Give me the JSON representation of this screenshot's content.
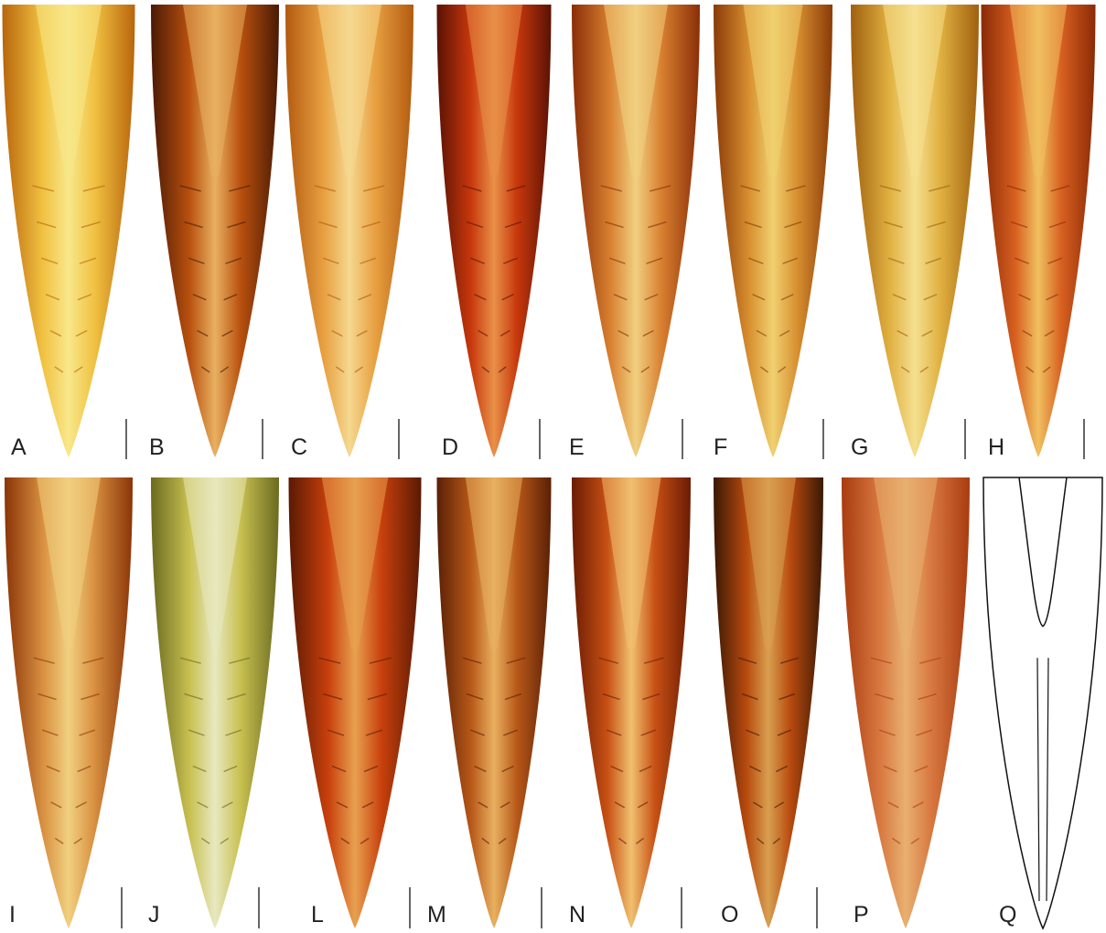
{
  "rows": [
    {
      "panels": [
        "A",
        "B",
        "C",
        "D",
        "E",
        "F",
        "G",
        "H"
      ]
    },
    {
      "panels": [
        "I",
        "J",
        "L",
        "M",
        "N",
        "O",
        "P",
        "Q"
      ]
    }
  ]
}
